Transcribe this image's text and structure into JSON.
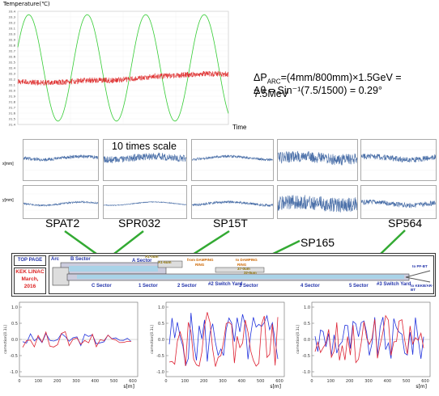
{
  "top_chart": {
    "y_label": "Temperature(℃)",
    "x_label": "Time",
    "y_ticks": [
      "33.4",
      "33.3",
      "33.2",
      "33.1",
      "33.0",
      "32.9",
      "32.8",
      "32.7",
      "32.6",
      "32.5",
      "32.4",
      "32.3",
      "32.2",
      "32.1",
      "32.0",
      "31.9",
      "31.8",
      "31.7",
      "31.6",
      "31.5",
      "31.4"
    ],
    "colors": {
      "green": "#33cc33",
      "red": "#dd2222"
    }
  },
  "formula": {
    "line1_prefix": "ΔP",
    "line1_sub": "ARC",
    "line1_rest": "=(4mm/800mm)×1.5GeV = 7.5MeV",
    "line2": "Δθ = Sin⁻¹(7.5/1500) = 0.29°"
  },
  "orbit_grid": {
    "x_label": "x[mm]",
    "y_label": "y[mm]",
    "note": "10 times scale",
    "trace_color": "#4a6fa8"
  },
  "monitors": [
    "SPAT2",
    "SPR032",
    "SP15T",
    "SP165",
    "SP564"
  ],
  "map": {
    "top_page": "TOP PAGE",
    "org_line1": "KEK LINAC",
    "org_line2": "March,",
    "org_line3": "2016",
    "labels": {
      "arc": "Arc",
      "b_sector": "B Sector",
      "a_sector": "A Sector",
      "a1_0": "A1-0um",
      "a1_6": "A1-6um",
      "from_damping": "from DAMPING",
      "ring1": "RING",
      "to_damping": "to DAMPING",
      "ring2": "RING",
      "s37": "37-0um",
      "s32": "32-0um",
      "to_pf": "to PF-BT",
      "c_sector": "C Sector",
      "sector1": "1 Sector",
      "sector2": "2 Sector",
      "switch_yard_2": "#2 Switch Yard",
      "sector3": "3 Sector",
      "sector4": "4 Sector",
      "sector5": "5 Sector",
      "switch_yard_3": "#3 Switch Yard",
      "to_kekb": "to KEKB/AR-BT"
    }
  },
  "bottom_charts": {
    "y_label": "correction[0.1L]",
    "x_label": "s[m]",
    "y_ticks": [
      "1.0",
      "0.5",
      "0.0",
      "-0.5",
      "-1.0"
    ],
    "x_ticks": [
      "0",
      "100",
      "200",
      "300",
      "400",
      "500",
      "600"
    ],
    "blue": "#2233dd",
    "red": "#dd2233"
  }
}
